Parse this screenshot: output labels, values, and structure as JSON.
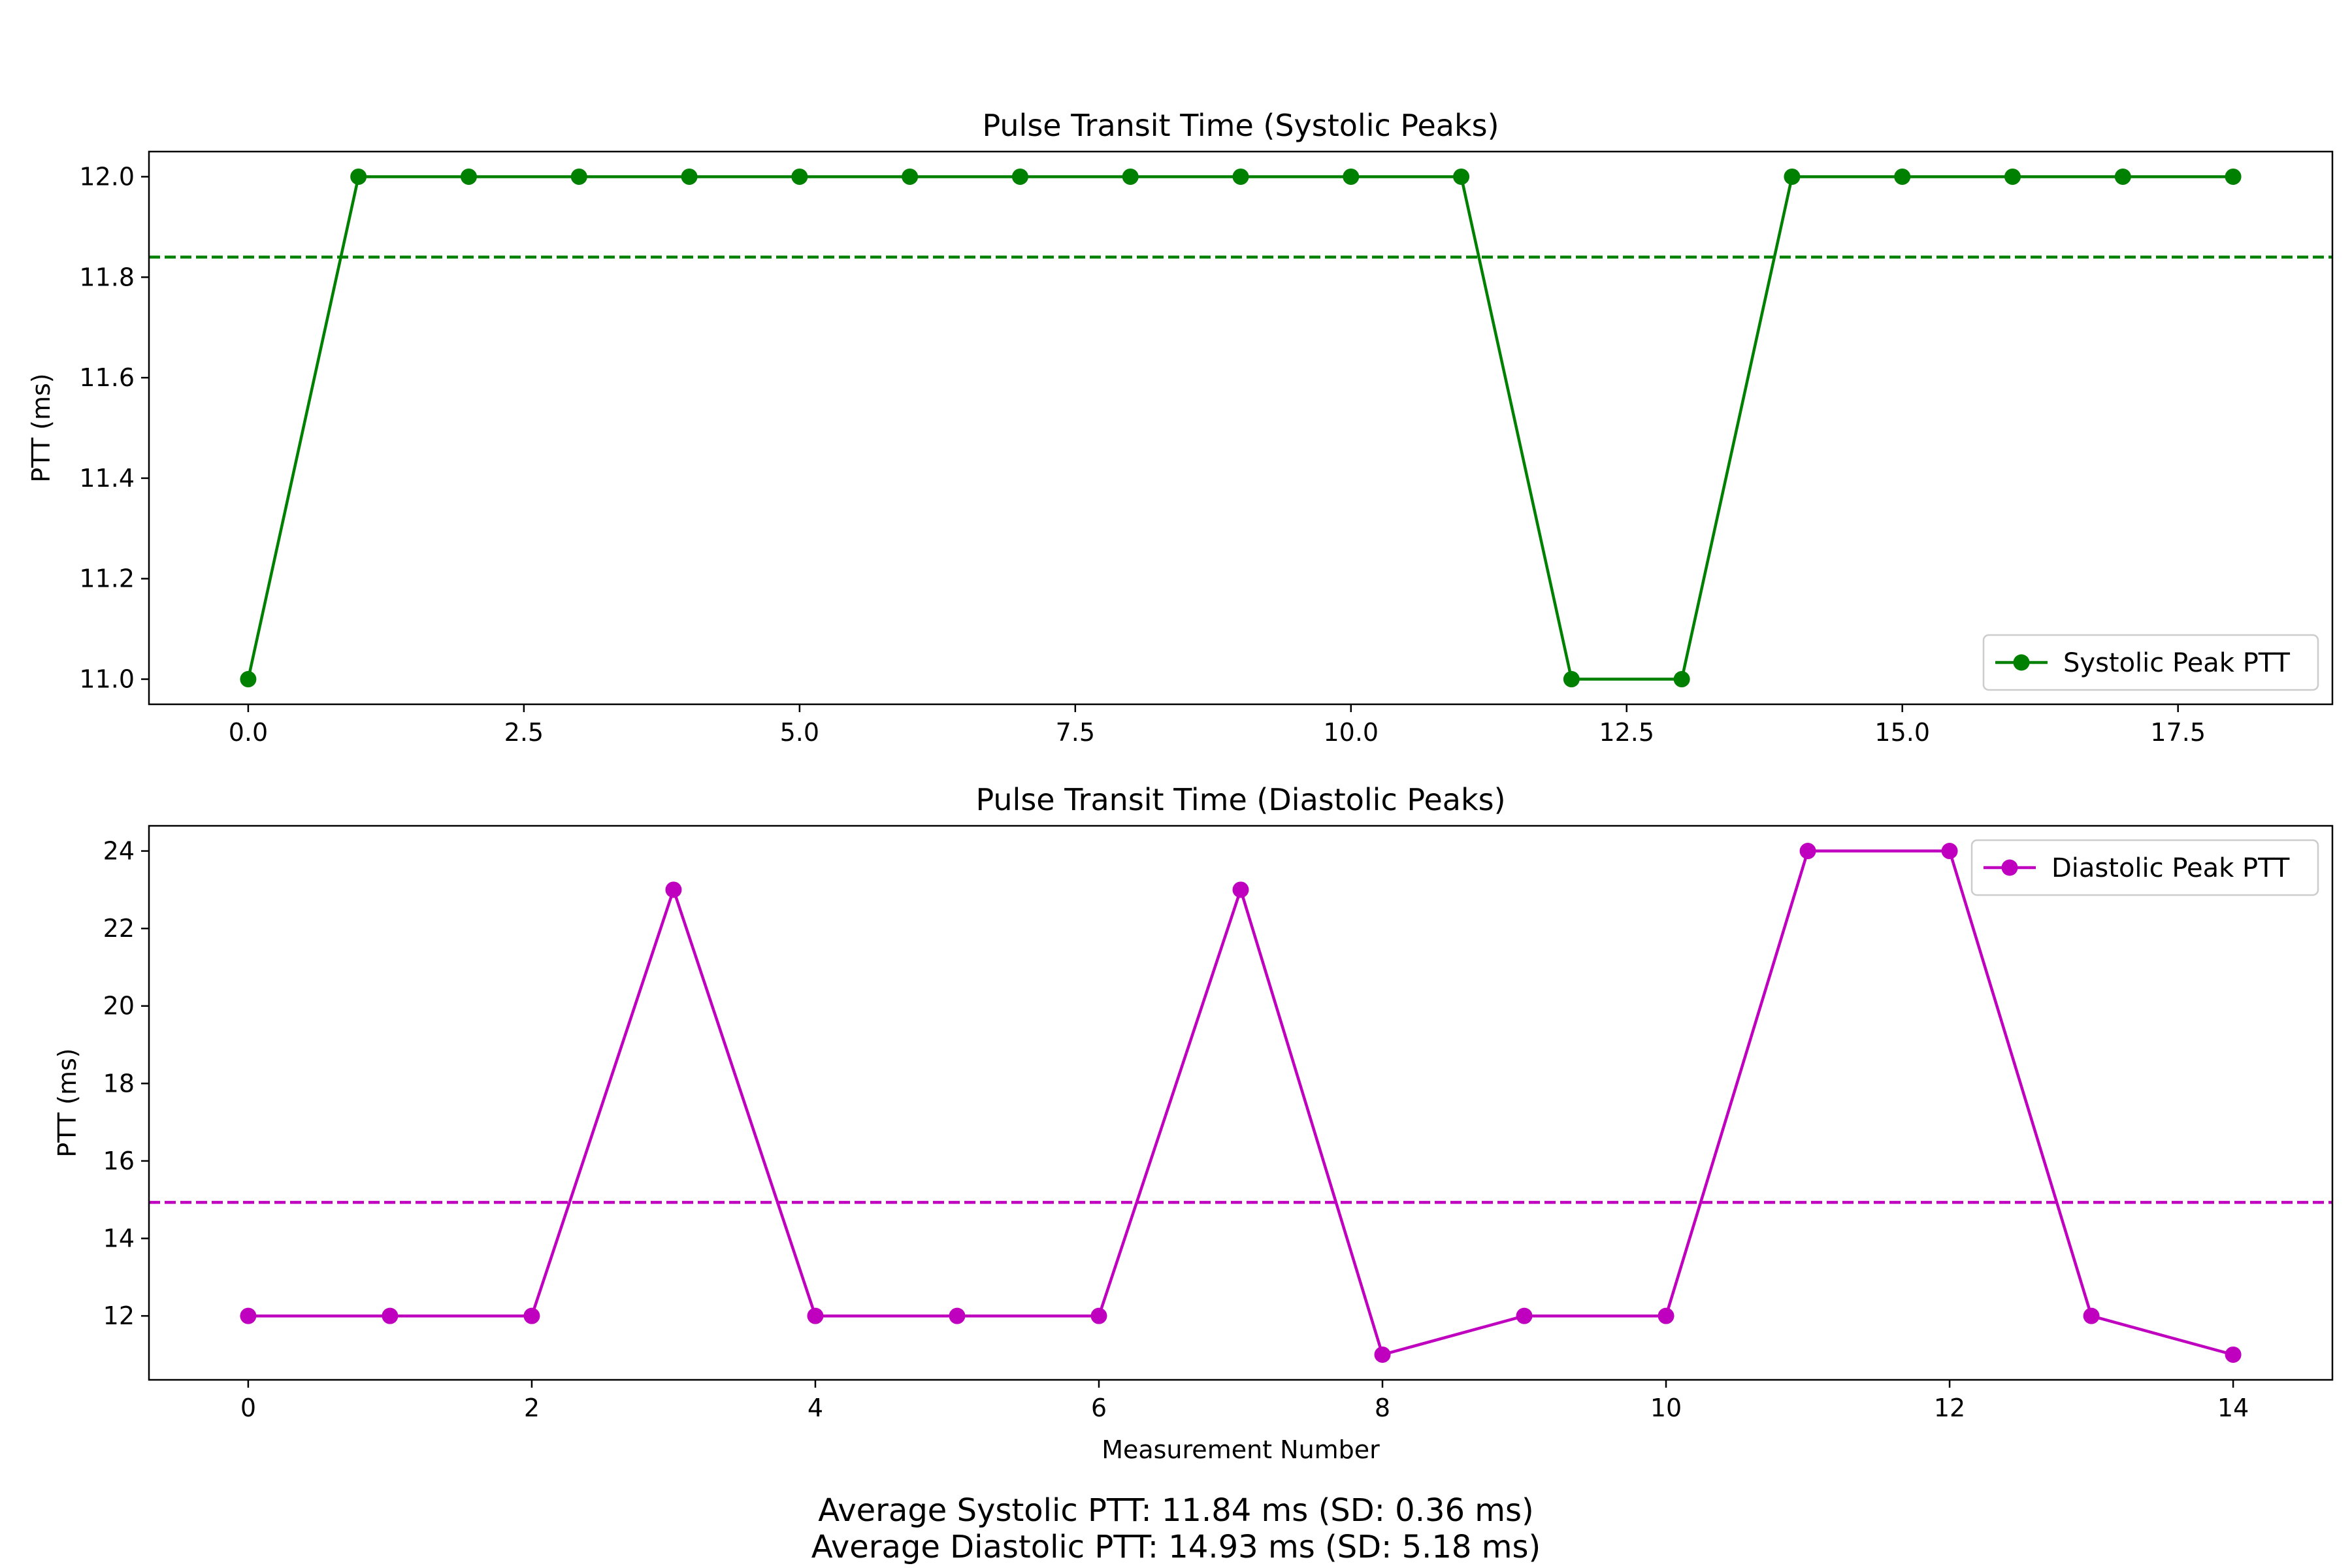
{
  "chart_data": [
    {
      "type": "line",
      "title": "Pulse Transit Time (Systolic Peaks)",
      "xlabel": "",
      "ylabel": "PTT (ms)",
      "xlim": [
        -0.9,
        18.9
      ],
      "ylim": [
        10.95,
        12.05
      ],
      "xticks": [
        0,
        2.5,
        5,
        7.5,
        10,
        12.5,
        15,
        17.5
      ],
      "xtick_labels": [
        "0.0",
        "2.5",
        "5.0",
        "7.5",
        "10.0",
        "12.5",
        "15.0",
        "17.5"
      ],
      "yticks": [
        11.0,
        11.2,
        11.4,
        11.6,
        11.8,
        12.0
      ],
      "ytick_labels": [
        "11.0",
        "11.2",
        "11.4",
        "11.6",
        "11.8",
        "12.0"
      ],
      "grid": false,
      "legend_position": "lower right",
      "series": [
        {
          "name": "Systolic Peak PTT",
          "color": "#008000",
          "marker": "circle",
          "x": [
            0,
            1,
            2,
            3,
            4,
            5,
            6,
            7,
            8,
            9,
            10,
            11,
            12,
            13,
            14,
            15,
            16,
            17,
            18
          ],
          "y": [
            11,
            12,
            12,
            12,
            12,
            12,
            12,
            12,
            12,
            12,
            12,
            12,
            11,
            11,
            12,
            12,
            12,
            12,
            12
          ]
        }
      ],
      "reference_line": {
        "y": 11.84,
        "style": "dashed",
        "color": "#008000"
      }
    },
    {
      "type": "line",
      "title": "Pulse Transit Time (Diastolic Peaks)",
      "xlabel": "Measurement Number",
      "ylabel": "PTT (ms)",
      "xlim": [
        -0.7,
        14.7
      ],
      "ylim": [
        10.35,
        24.65
      ],
      "xticks": [
        0,
        2,
        4,
        6,
        8,
        10,
        12,
        14
      ],
      "xtick_labels": [
        "0",
        "2",
        "4",
        "6",
        "8",
        "10",
        "12",
        "14"
      ],
      "yticks": [
        12,
        14,
        16,
        18,
        20,
        22,
        24
      ],
      "ytick_labels": [
        "12",
        "14",
        "16",
        "18",
        "20",
        "22",
        "24"
      ],
      "grid": false,
      "legend_position": "upper right",
      "series": [
        {
          "name": "Diastolic Peak PTT",
          "color": "#bf00bf",
          "marker": "circle",
          "x": [
            0,
            1,
            2,
            3,
            4,
            5,
            6,
            7,
            8,
            9,
            10,
            11,
            12,
            13,
            14
          ],
          "y": [
            12,
            12,
            12,
            23,
            12,
            12,
            12,
            23,
            11,
            12,
            12,
            24,
            24,
            12,
            11
          ]
        }
      ],
      "reference_line": {
        "y": 14.93,
        "style": "dashed",
        "color": "#bf00bf"
      }
    }
  ],
  "footer": {
    "line1": "Average Systolic PTT: 11.84 ms (SD: 0.36 ms)",
    "line2": "Average Diastolic PTT: 14.93 ms (SD: 5.18 ms)"
  }
}
